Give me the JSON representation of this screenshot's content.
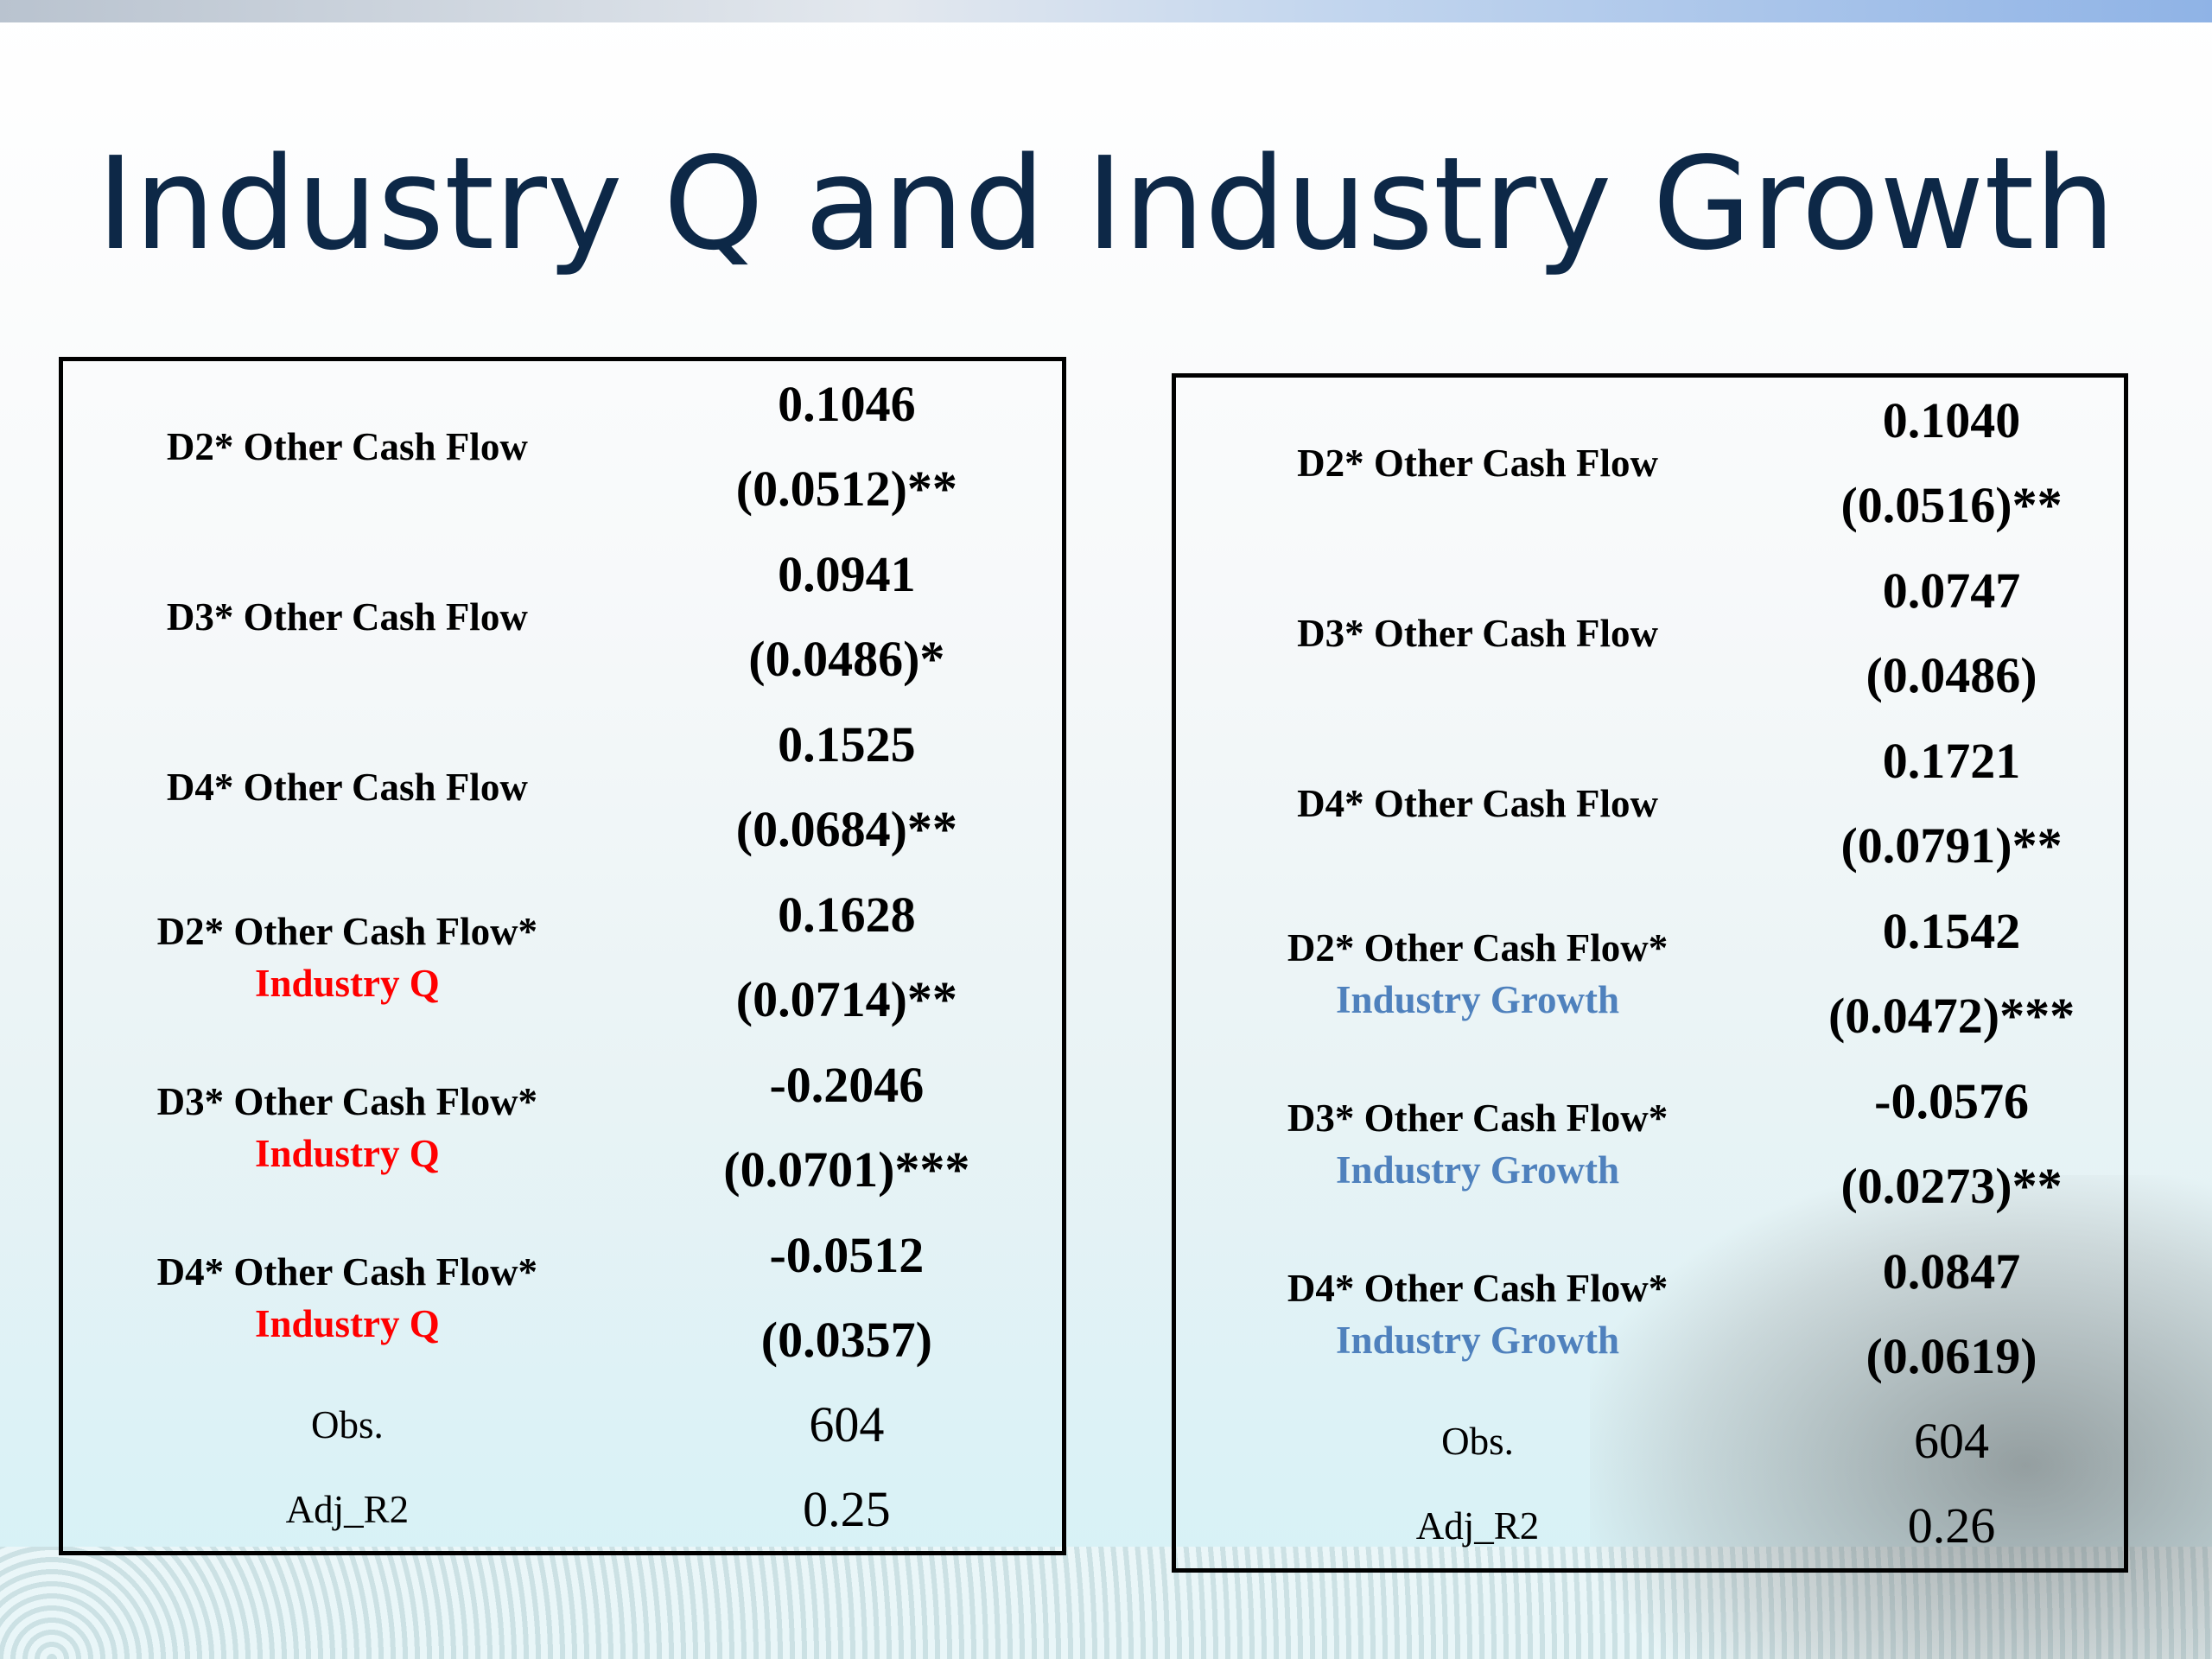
{
  "title": "Industry Q and Industry Growth",
  "tables": [
    {
      "rows": [
        {
          "label": "D2* Other Cash Flow",
          "coef": "0.1046",
          "se": "(0.0512)**"
        },
        {
          "label": "D3* Other Cash Flow",
          "coef": "0.0941",
          "se": "(0.0486)*"
        },
        {
          "label": "D4* Other Cash Flow",
          "coef": "0.1525",
          "se": "(0.0684)**"
        },
        {
          "label": "D2* Other Cash Flow*",
          "sublabel": "Industry Q",
          "coef": "0.1628",
          "se": "(0.0714)**"
        },
        {
          "label": "D3* Other Cash Flow*",
          "sublabel": "Industry Q",
          "coef": "-0.2046",
          "se": "(0.0701)***"
        },
        {
          "label": "D4* Other Cash Flow*",
          "sublabel": "Industry Q",
          "coef": "-0.0512",
          "se": "(0.0357)"
        }
      ],
      "stats": [
        {
          "label": "Obs.",
          "value": "604"
        },
        {
          "label": "Adj_R2",
          "value": "0.25"
        }
      ]
    },
    {
      "rows": [
        {
          "label": "D2* Other Cash Flow",
          "coef": "0.1040",
          "se": "(0.0516)**"
        },
        {
          "label": "D3* Other Cash Flow",
          "coef": "0.0747",
          "se": "(0.0486)"
        },
        {
          "label": "D4* Other Cash Flow",
          "coef": "0.1721",
          "se": "(0.0791)**"
        },
        {
          "label": "D2* Other Cash Flow*",
          "sublabel": "Industry Growth",
          "coef": "0.1542",
          "se": "(0.0472)***"
        },
        {
          "label": "D3* Other Cash Flow*",
          "sublabel": "Industry Growth",
          "coef": "-0.0576",
          "se": "(0.0273)**"
        },
        {
          "label": "D4* Other Cash Flow*",
          "sublabel": "Industry Growth",
          "coef": "0.0847",
          "se": "(0.0619)"
        }
      ],
      "stats": [
        {
          "label": "Obs.",
          "value": "604"
        },
        {
          "label": "Adj_R2",
          "value": "0.26"
        }
      ]
    }
  ]
}
